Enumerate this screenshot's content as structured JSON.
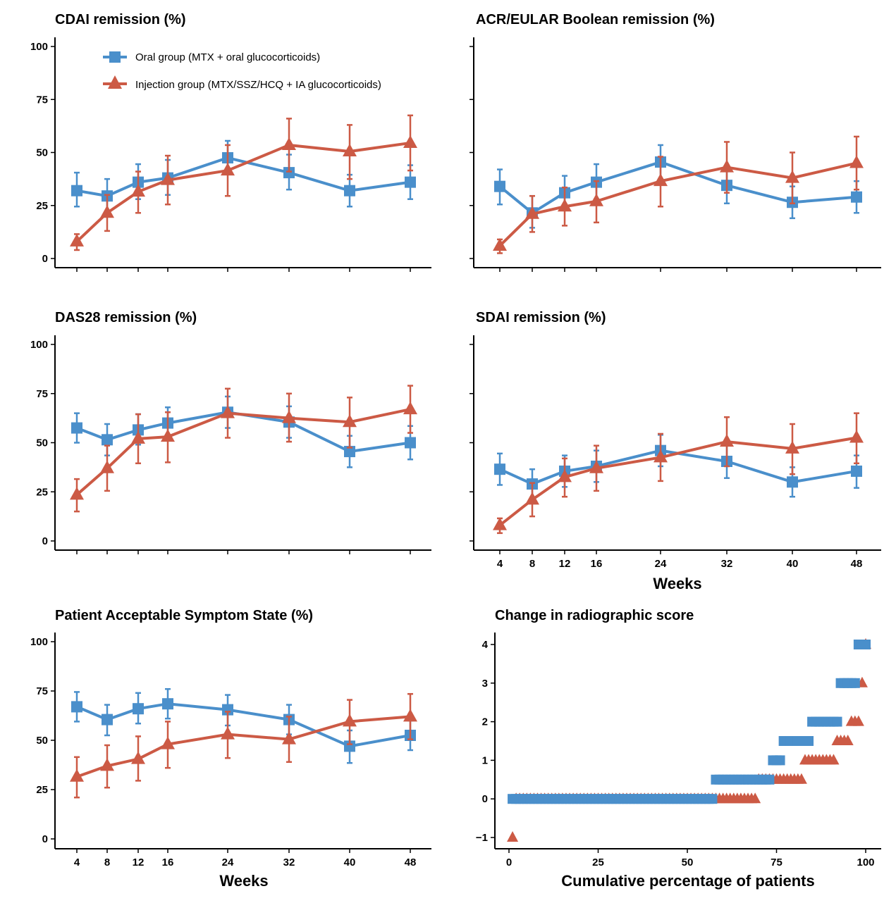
{
  "colors": {
    "oral": "#4a8fcb",
    "injection": "#cc5a45"
  },
  "legend": {
    "oral": "Oral group  (MTX + oral glucocorticoids)",
    "injection": "Injection group (MTX/SSZ/HCQ + IA glucocorticoids)"
  },
  "chart_data": [
    {
      "type": "line",
      "title": "CDAI remission  (%)",
      "xlabel": "",
      "ylabel": "",
      "x": [
        4,
        8,
        12,
        16,
        24,
        32,
        40,
        48
      ],
      "ylim": [
        0,
        100
      ],
      "yticks": [
        0,
        25,
        50,
        75,
        100
      ],
      "legend": "top-left",
      "series": [
        {
          "name": "Oral group  (MTX + oral glucocorticoids)",
          "marker": "square",
          "values": [
            32,
            29.5,
            36,
            38,
            47.5,
            40.5,
            32,
            36
          ],
          "lower": [
            24.5,
            21,
            28,
            30,
            40,
            32.5,
            24.5,
            28
          ],
          "upper": [
            40.5,
            37.5,
            44.5,
            46.5,
            55.5,
            49,
            39.5,
            44
          ]
        },
        {
          "name": "Injection group (MTX/SSZ/HCQ + IA glucocorticoids)",
          "marker": "triangle",
          "values": [
            8,
            21.5,
            31.5,
            37,
            41.5,
            53.5,
            50.5,
            54.5
          ],
          "lower": [
            4,
            13,
            21.5,
            25.5,
            29.5,
            41,
            37.5,
            41.5
          ],
          "upper": [
            11.5,
            30,
            41,
            48.5,
            53.5,
            66,
            63,
            67.5
          ]
        }
      ]
    },
    {
      "type": "line",
      "title": "ACR/EULAR Boolean remission (%)",
      "xlabel": "",
      "ylabel": "",
      "x": [
        4,
        8,
        12,
        16,
        24,
        32,
        40,
        48
      ],
      "ylim": [
        0,
        100
      ],
      "yticks": [
        0,
        25,
        50,
        75,
        100
      ],
      "series": [
        {
          "name": "Oral group  (MTX + oral glucocorticoids)",
          "marker": "square",
          "values": [
            34,
            21.5,
            31,
            36,
            45.5,
            34.5,
            26.5,
            29
          ],
          "lower": [
            25.5,
            14.5,
            23,
            28,
            37.5,
            26,
            19,
            21.5
          ],
          "upper": [
            42,
            29.5,
            39,
            44.5,
            53.5,
            42.5,
            34,
            36.5
          ]
        },
        {
          "name": "Injection group (MTX/SSZ/HCQ + IA glucocorticoids)",
          "marker": "triangle",
          "values": [
            6,
            21,
            24.5,
            27,
            36.5,
            43,
            38,
            45
          ],
          "lower": [
            2.5,
            12.5,
            15.5,
            17,
            24.5,
            31,
            26,
            32.5
          ],
          "upper": [
            9,
            29.5,
            33.5,
            36.5,
            48,
            55,
            50,
            57.5
          ]
        }
      ]
    },
    {
      "type": "line",
      "title": "DAS28 remission (%)",
      "xlabel": "",
      "ylabel": "",
      "x": [
        4,
        8,
        12,
        16,
        24,
        32,
        40,
        48
      ],
      "ylim": [
        0,
        100
      ],
      "yticks": [
        0,
        25,
        50,
        75,
        100
      ],
      "series": [
        {
          "name": "Oral group  (MTX + oral glucocorticoids)",
          "marker": "square",
          "values": [
            57.5,
            51.5,
            56.5,
            60,
            65.5,
            60.5,
            45.5,
            50
          ],
          "lower": [
            50,
            43.5,
            49,
            52,
            57.5,
            52.5,
            37.5,
            41.5
          ],
          "upper": [
            65,
            59.5,
            64.5,
            68,
            73.5,
            68.5,
            53.5,
            58.5
          ]
        },
        {
          "name": "Injection group (MTX/SSZ/HCQ + IA glucocorticoids)",
          "marker": "triangle",
          "values": [
            23.5,
            37,
            52,
            53,
            65,
            62.5,
            60.5,
            67
          ],
          "lower": [
            15,
            25.5,
            39.5,
            40,
            52.5,
            50.5,
            47.5,
            55
          ],
          "upper": [
            31.5,
            48.5,
            64.5,
            65.5,
            77.5,
            75,
            73,
            79
          ]
        }
      ]
    },
    {
      "type": "line",
      "title": "SDAI remission (%)",
      "xlabel": "Weeks",
      "ylabel": "",
      "x": [
        4,
        8,
        12,
        16,
        24,
        32,
        40,
        48
      ],
      "xticks": [
        "4",
        "8",
        "12",
        "16",
        "24",
        "32",
        "40",
        "48"
      ],
      "ylim": [
        0,
        100
      ],
      "yticks": [
        0,
        25,
        50,
        75,
        100
      ],
      "series": [
        {
          "name": "Oral group  (MTX + oral glucocorticoids)",
          "marker": "square",
          "values": [
            36.5,
            29,
            35.5,
            38,
            46,
            40.5,
            30,
            35.5
          ],
          "lower": [
            28.5,
            21,
            27.5,
            30,
            38,
            32,
            22.5,
            27
          ],
          "upper": [
            44.5,
            36.5,
            43.5,
            46,
            54,
            49,
            37.5,
            43.5
          ]
        },
        {
          "name": "Injection group (MTX/SSZ/HCQ + IA glucocorticoids)",
          "marker": "triangle",
          "values": [
            8,
            21,
            32.5,
            37,
            42.5,
            50.5,
            47,
            52.5
          ],
          "lower": [
            4,
            12.5,
            22.5,
            25.5,
            30.5,
            38,
            34,
            39.5
          ],
          "upper": [
            11.5,
            29.5,
            42,
            48.5,
            54.5,
            63,
            59.5,
            65
          ]
        }
      ]
    },
    {
      "type": "line",
      "title": "Patient Acceptable Symptom State (%)",
      "xlabel": "Weeks",
      "ylabel": "",
      "x": [
        4,
        8,
        12,
        16,
        24,
        32,
        40,
        48
      ],
      "xticks": [
        "4",
        "8",
        "12",
        "16",
        "24",
        "32",
        "40",
        "48"
      ],
      "ylim": [
        0,
        100
      ],
      "yticks": [
        0,
        25,
        50,
        75,
        100
      ],
      "series": [
        {
          "name": "Oral group  (MTX + oral glucocorticoids)",
          "marker": "square",
          "values": [
            67,
            60.5,
            66,
            68.5,
            65.5,
            60.5,
            47,
            52.5
          ],
          "lower": [
            59.5,
            52.5,
            58.5,
            61,
            57.5,
            53,
            38.5,
            45
          ],
          "upper": [
            74.5,
            68,
            74,
            76,
            73,
            68,
            55,
            60
          ]
        },
        {
          "name": "Injection group (MTX/SSZ/HCQ + IA glucocorticoids)",
          "marker": "triangle",
          "values": [
            31.5,
            37,
            40.5,
            48,
            53,
            50.5,
            59.5,
            62
          ],
          "lower": [
            21,
            26,
            29.5,
            36,
            41,
            39,
            48,
            50.5
          ],
          "upper": [
            41.5,
            47.5,
            52,
            59.5,
            64.5,
            62,
            70.5,
            73.5
          ]
        }
      ]
    },
    {
      "type": "scatter",
      "title": "Change in radiographic score",
      "xlabel": "Cumulative percentage of patients",
      "ylabel": "",
      "xlim": [
        0,
        100
      ],
      "xticks": [
        0,
        25,
        50,
        75,
        100
      ],
      "ylim": [
        -1,
        4
      ],
      "yticks": [
        -1,
        0,
        1,
        2,
        3,
        4
      ],
      "series": [
        {
          "name": "Oral group  (MTX + oral glucocorticoids)",
          "marker": "square",
          "segments": [
            {
              "y": 0,
              "x_from": 1,
              "x_to": 57
            },
            {
              "y": 0.5,
              "x_from": 58,
              "x_to": 73
            },
            {
              "y": 1,
              "x_from": 74,
              "x_to": 76
            },
            {
              "y": 1.5,
              "x_from": 77,
              "x_to": 84
            },
            {
              "y": 2,
              "x_from": 85,
              "x_to": 92
            },
            {
              "y": 3,
              "x_from": 93,
              "x_to": 97
            },
            {
              "y": 4,
              "x_from": 98,
              "x_to": 100
            }
          ]
        },
        {
          "name": "Injection group (MTX/SSZ/HCQ + IA glucocorticoids)",
          "marker": "triangle",
          "segments": [
            {
              "y": -1,
              "x_from": 1,
              "x_to": 1
            },
            {
              "y": 0,
              "x_from": 2,
              "x_to": 69
            },
            {
              "y": 0.5,
              "x_from": 70,
              "x_to": 82
            },
            {
              "y": 1,
              "x_from": 83,
              "x_to": 91
            },
            {
              "y": 1.5,
              "x_from": 92,
              "x_to": 95
            },
            {
              "y": 2,
              "x_from": 96,
              "x_to": 98
            },
            {
              "y": 3,
              "x_from": 99,
              "x_to": 99
            },
            {
              "y": 4,
              "x_from": 100,
              "x_to": 100
            }
          ]
        }
      ]
    }
  ]
}
